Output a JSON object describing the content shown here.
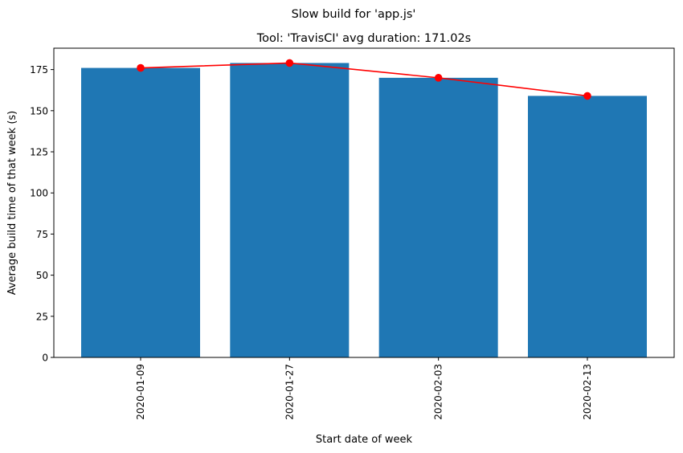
{
  "chart_data": {
    "type": "bar",
    "suptitle": "Slow build for 'app.js'",
    "title": "Tool: 'TravisCI' avg duration: 171.02s",
    "xlabel": "Start date of week",
    "ylabel": "Average build time of that week (s)",
    "categories": [
      "2020-01-09",
      "2020-01-27",
      "2020-02-03",
      "2020-02-13"
    ],
    "series": [
      {
        "type": "bar",
        "values": [
          176,
          179,
          170,
          159
        ],
        "color": "#1f77b4"
      },
      {
        "type": "line",
        "values": [
          176,
          179,
          170,
          159
        ],
        "color": "#ff0000",
        "marker": "circle"
      }
    ],
    "ylim": [
      0,
      188
    ],
    "yticks": [
      0,
      25,
      50,
      75,
      100,
      125,
      150,
      175
    ],
    "grid": false,
    "legend": "none"
  }
}
